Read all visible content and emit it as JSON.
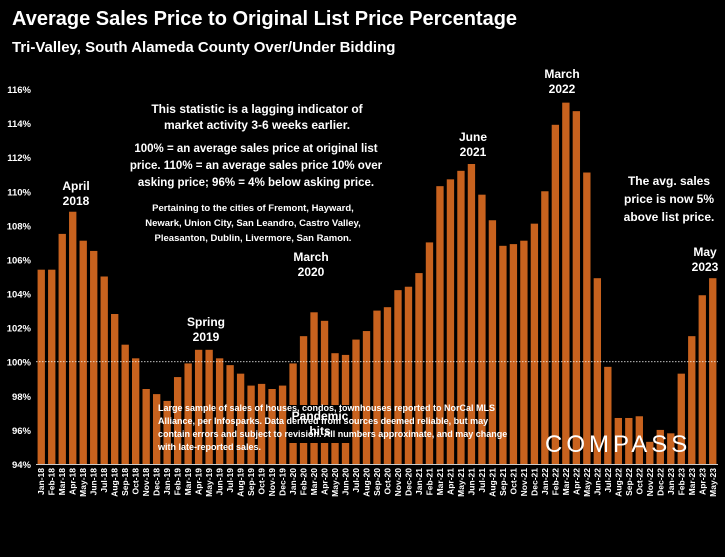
{
  "header": {
    "title": "Average Sales Price to Original List Price Percentage",
    "subtitle": "Tri-Valley, South Alameda County Over/Under Bidding"
  },
  "chart_data": {
    "type": "bar",
    "title": "Average Sales Price to Original List Price Percentage",
    "subtitle": "Tri-Valley, South Alameda County Over/Under Bidding",
    "ylim": [
      94,
      116
    ],
    "yticks": [
      "94%",
      "96%",
      "98%",
      "100%",
      "102%",
      "104%",
      "106%",
      "108%",
      "110%",
      "112%",
      "114%",
      "116%"
    ],
    "yticks_values": [
      94,
      96,
      98,
      100,
      102,
      104,
      106,
      108,
      110,
      112,
      114,
      116
    ],
    "reference_line": 100,
    "bar_color": "#C8621E",
    "grid": false,
    "categories": [
      "Jan-18",
      "Feb-18",
      "Mar-18",
      "Apr-18",
      "May-18",
      "Jun-18",
      "Jul-18",
      "Aug-18",
      "Sep-18",
      "Oct-18",
      "Nov-18",
      "Dec-18",
      "Jan-19",
      "Feb-19",
      "Mar-19",
      "Apr-19",
      "May-19",
      "Jun-19",
      "Jul-19",
      "Aug-19",
      "Sep-19",
      "Oct-19",
      "Nov-19",
      "Dec-19",
      "Jan-20",
      "Feb-20",
      "Mar-20",
      "Apr-20",
      "May-20",
      "Jun-20",
      "Jul-20",
      "Aug-20",
      "Sep-20",
      "Oct-20",
      "Nov-20",
      "Dec-20",
      "Jan-21",
      "Feb-21",
      "Mar-21",
      "Apr-21",
      "May-21",
      "Jun-21",
      "Jul-21",
      "Aug-21",
      "Sep-21",
      "Oct-21",
      "Nov-21",
      "Dec-21",
      "Jan-22",
      "Feb-22",
      "Mar-22",
      "Apr-22",
      "May-22",
      "Jun-22",
      "Jul-22",
      "Aug-22",
      "Sep-22",
      "Oct-22",
      "Nov-22",
      "Dec-22",
      "Jan-23",
      "Feb-23",
      "Mar-23",
      "Apr-23",
      "May-23"
    ],
    "values": [
      105.4,
      105.4,
      107.5,
      108.8,
      107.1,
      106.5,
      105.0,
      102.8,
      101.0,
      100.2,
      98.4,
      98.1,
      97.7,
      99.1,
      99.9,
      100.7,
      100.7,
      100.2,
      99.8,
      99.3,
      98.6,
      98.7,
      98.4,
      98.6,
      99.9,
      101.5,
      102.9,
      102.4,
      100.5,
      100.4,
      101.3,
      101.8,
      103.0,
      103.2,
      104.2,
      104.4,
      105.2,
      107.0,
      110.3,
      110.7,
      111.2,
      111.6,
      109.8,
      108.3,
      106.8,
      106.9,
      107.1,
      108.1,
      110.0,
      113.9,
      115.2,
      114.7,
      111.1,
      104.9,
      99.7,
      96.7,
      96.7,
      96.8,
      95.3,
      96.0,
      95.8,
      99.3,
      101.5,
      103.9,
      104.9
    ]
  },
  "annotations": {
    "april_2018": [
      "April",
      "2018"
    ],
    "spring_2019": [
      "Spring",
      "2019"
    ],
    "march_2020": [
      "March",
      "2020"
    ],
    "pandemic": [
      "Pandemic",
      "hits"
    ],
    "june_2021": [
      "June",
      "2021"
    ],
    "march_2022": [
      "March",
      "2022"
    ],
    "may_2023": [
      "May",
      "2023"
    ],
    "lagging": [
      "This statistic is a lagging indicator of",
      "market activity 3-6 weeks earlier."
    ],
    "explain": [
      "100% = an average sales price at original list",
      "price. 110% = an average sales price 10% over",
      "asking price; 96% = 4% below asking price."
    ],
    "cities": [
      "Pertaining to the cities of Fremont, Hayward,",
      "Newark, Union City, San Leandro, Castro Valley,",
      "Pleasanton, Dublin, Livermore, San Ramon."
    ],
    "now": [
      "The avg. sales",
      "price is now 5%",
      "above list price."
    ]
  },
  "footnote": "Large sample of sales of houses, condos, townhouses reported to NorCal MLS Alliance, per Infosparks. Data derived from sources deemed reliable, but may contain errors and subject to revision. All numbers approximate, and may change with late-reported sales.",
  "logo": "COMPASS"
}
